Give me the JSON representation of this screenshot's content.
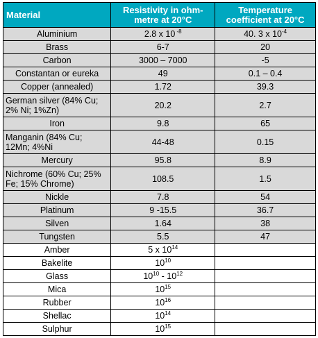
{
  "headers": {
    "material": "Material",
    "resistivity": "Resistivity in ohm-metre at 20°C",
    "temperature": "Temperature coefficient at 20°C"
  },
  "rows": [
    {
      "material": "Aluminium",
      "res_base": "2.8 x 10",
      "res_exp": " -8",
      "temp_base": "40. 3 x 10",
      "temp_exp": "-4"
    },
    {
      "material": "Brass",
      "res_base": "6-7",
      "res_exp": "",
      "temp_base": "20",
      "temp_exp": ""
    },
    {
      "material": "Carbon",
      "res_base": "3000 – 7000",
      "res_exp": "",
      "temp_base": "-5",
      "temp_exp": ""
    },
    {
      "material": "Constantan or eureka",
      "res_base": "49",
      "res_exp": "",
      "temp_base": "0.1 – 0.4",
      "temp_exp": ""
    },
    {
      "material": "Copper (annealed)",
      "res_base": "1.72",
      "res_exp": "",
      "temp_base": "39.3",
      "temp_exp": ""
    },
    {
      "material": "German silver (84% Cu; 2% Ni; 1%Zn)",
      "res_base": "20.2",
      "res_exp": "",
      "temp_base": "2.7",
      "temp_exp": ""
    },
    {
      "material": "Iron",
      "res_base": "9.8",
      "res_exp": "",
      "temp_base": "65",
      "temp_exp": ""
    },
    {
      "material": "Manganin (84% Cu; 12Mn; 4%Ni",
      "res_base": "44-48",
      "res_exp": "",
      "temp_base": "0.15",
      "temp_exp": ""
    },
    {
      "material": "Mercury",
      "res_base": "95.8",
      "res_exp": "",
      "temp_base": "8.9",
      "temp_exp": ""
    },
    {
      "material": "Nichrome (60% Cu; 25% Fe; 15% Chrome)",
      "res_base": "108.5",
      "res_exp": "",
      "temp_base": "1.5",
      "temp_exp": ""
    },
    {
      "material": "Nickle",
      "res_base": "7.8",
      "res_exp": "",
      "temp_base": "54",
      "temp_exp": ""
    },
    {
      "material": "Platinum",
      "res_base": "9 -15.5",
      "res_exp": "",
      "temp_base": "36.7",
      "temp_exp": ""
    },
    {
      "material": "Silven",
      "res_base": "1.64",
      "res_exp": "",
      "temp_base": "38",
      "temp_exp": ""
    },
    {
      "material": "Tungsten",
      "res_base": "5.5",
      "res_exp": "",
      "temp_base": "47",
      "temp_exp": ""
    },
    {
      "material": "Amber",
      "res_base": "5 x 10",
      "res_exp": "14",
      "temp_base": "",
      "temp_exp": ""
    },
    {
      "material": "Bakelite",
      "res_base": "10",
      "res_exp": "10",
      "temp_base": "",
      "temp_exp": ""
    },
    {
      "material": "Glass",
      "res_base": "10",
      "res_exp": "10",
      "res_base2": " - 10",
      "res_exp2": "12",
      "temp_base": "",
      "temp_exp": ""
    },
    {
      "material": "Mica",
      "res_base": "10",
      "res_exp": "15",
      "temp_base": "",
      "temp_exp": ""
    },
    {
      "material": "Rubber",
      "res_base": "10",
      "res_exp": "16",
      "temp_base": "",
      "temp_exp": ""
    },
    {
      "material": "Shellac",
      "res_base": "10",
      "res_exp": "14",
      "temp_base": "",
      "temp_exp": ""
    },
    {
      "material": "Sulphur",
      "res_base": "10",
      "res_exp": "15",
      "temp_base": "",
      "temp_exp": ""
    }
  ],
  "colors": {
    "header_bg": "#00a8c0",
    "header_text": "#ffffff",
    "shaded_row": "#d9d9d9",
    "white_row": "#ffffff",
    "border": "#000000"
  }
}
